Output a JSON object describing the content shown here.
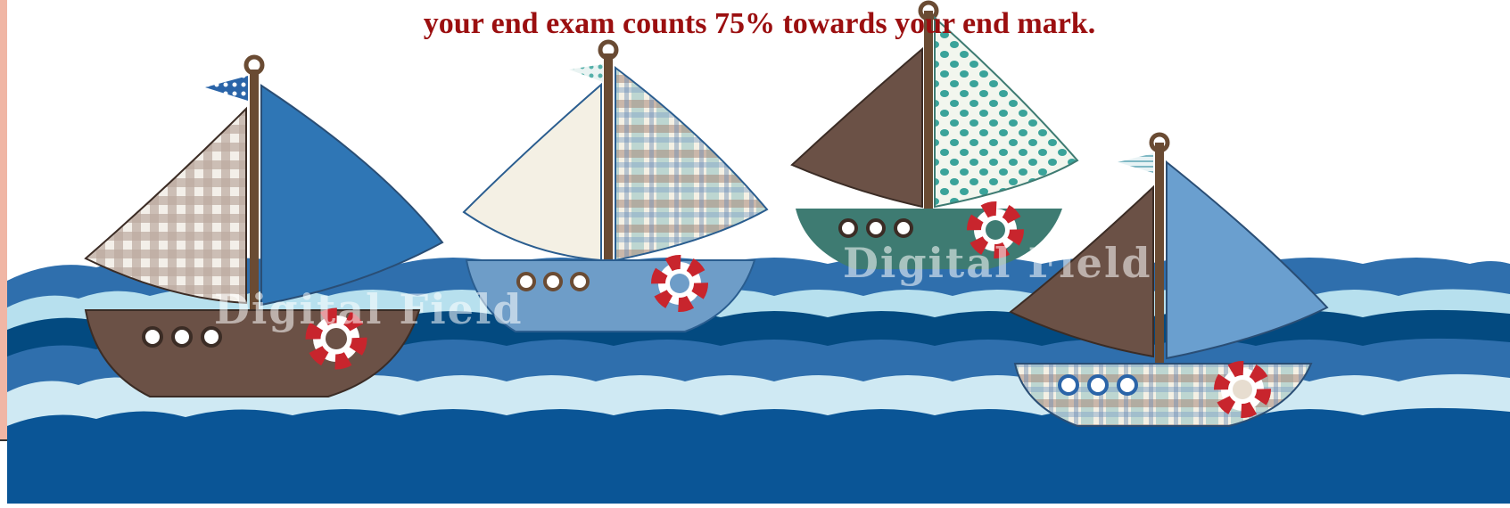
{
  "slide": {
    "caption": "your end exam counts 75% towards your end mark.",
    "caption_color": "#9b0f10",
    "accent_bar_color": "#f0b6a5"
  },
  "illustration": {
    "watermark_left": "Digital Field",
    "watermark_right": "Digital Field",
    "colors": {
      "sea_dark": "#034a80",
      "sea_mid": "#2f6fad",
      "sea_light": "#b7e0ee",
      "boat_brown": "#6b5146",
      "boat_blue": "#3a7ab8",
      "boat_teal": "#3e7b72",
      "lifebuoy_red": "#c8252d"
    }
  }
}
